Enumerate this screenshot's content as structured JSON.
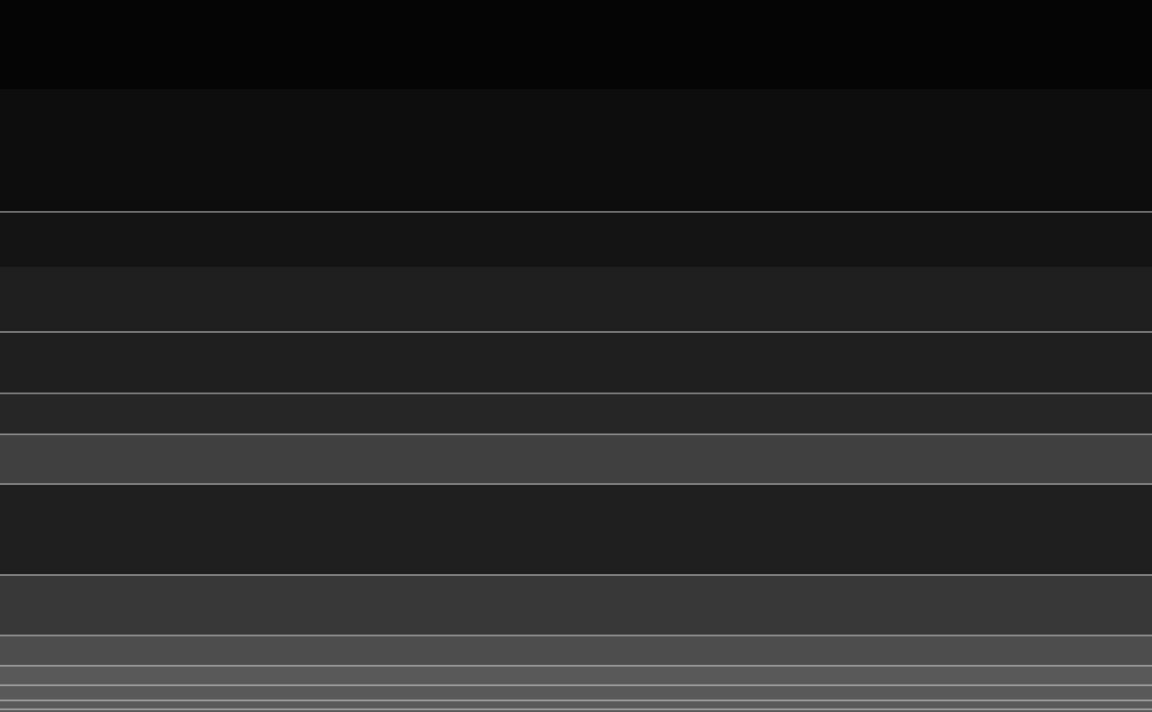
{
  "chart_data": {
    "type": "density_bands",
    "xlim": [
      0,
      1294
    ],
    "ylim": [
      0,
      800
    ],
    "bands": [
      0,
      100,
      238,
      300,
      373,
      442,
      488,
      544,
      646,
      714,
      748,
      800
    ],
    "density": [
      0.02,
      0.05,
      0.08,
      0.12,
      0.12,
      0.15,
      0.25,
      0.12,
      0.22,
      0.3,
      0.35
    ],
    "lines": [
      238,
      373,
      442,
      488,
      544,
      646,
      714,
      748,
      770,
      787,
      797
    ],
    "color": "#ffffff",
    "grid": false,
    "tick_labels": false
  }
}
